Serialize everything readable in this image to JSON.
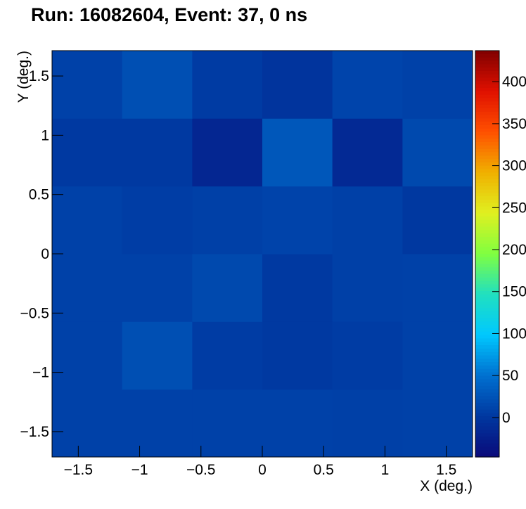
{
  "chart_data": {
    "type": "heatmap",
    "title": "Run: 16082604, Event: 37, 0 ns",
    "x_label": "X (deg.)",
    "y_label": "Y (deg.)",
    "xbins": [
      -1.714,
      -1.143,
      -0.571,
      0,
      0.571,
      1.143,
      1.714
    ],
    "ybins": [
      -1.714,
      -1.143,
      -0.571,
      0,
      0.571,
      1.143,
      1.714
    ],
    "z": [
      [
        9,
        9,
        9,
        9,
        8,
        9
      ],
      [
        9,
        21,
        5,
        2,
        5,
        9
      ],
      [
        9,
        9,
        16,
        2,
        8,
        9
      ],
      [
        9,
        6,
        8,
        11,
        8,
        1
      ],
      [
        2,
        2,
        -18,
        28,
        -14,
        16
      ],
      [
        9,
        21,
        4,
        -3,
        12,
        9
      ]
    ],
    "xlim": [
      -1.714,
      1.714
    ],
    "ylim": [
      -1.714,
      1.714
    ],
    "zlim": [
      -47,
      437
    ],
    "xticks": [
      {
        "value": -1.5,
        "label": "−1.5"
      },
      {
        "value": -1,
        "label": "−1"
      },
      {
        "value": -0.5,
        "label": "−0.5"
      },
      0,
      0.5,
      1,
      1.5
    ],
    "yticks": [
      {
        "value": -1.5,
        "label": "−1.5"
      },
      {
        "value": -1,
        "label": "−1"
      },
      {
        "value": -0.5,
        "label": "−0.5"
      },
      0,
      0.5,
      1,
      1.5
    ],
    "zticks": [
      0,
      50,
      100,
      150,
      200,
      250,
      300,
      350,
      400
    ],
    "colormap": [
      "#0a0a7a",
      "#0038a0",
      "#0070d0",
      "#00c8ff",
      "#20e0c0",
      "#80ff40",
      "#e0f020",
      "#f0b000",
      "#ff5000",
      "#e01000",
      "#800000"
    ]
  }
}
